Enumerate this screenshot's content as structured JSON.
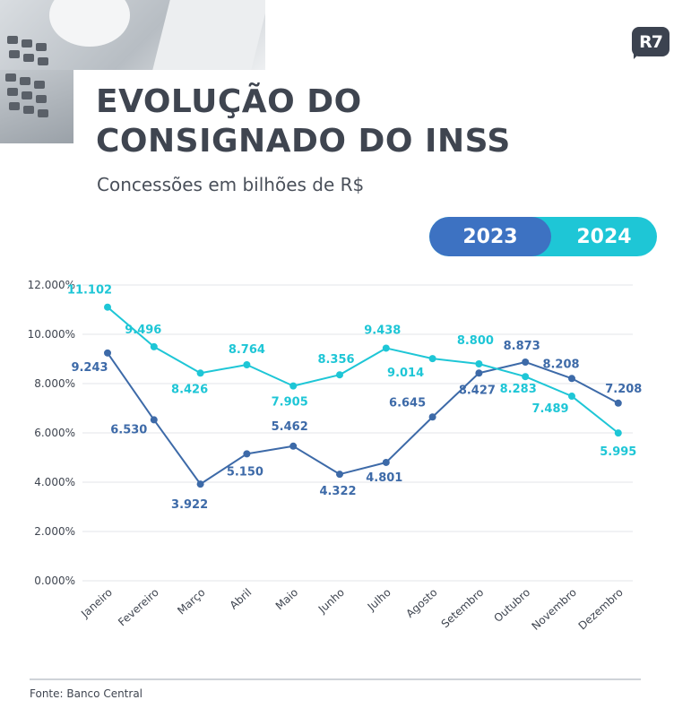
{
  "header": {
    "title_line1": "EVOLUÇÃO DO",
    "title_line2": "CONSIGNADO DO INSS",
    "subtitle": "Concessões em bilhões de R$",
    "logo_text": "R7"
  },
  "legend": {
    "label_2023": "2023",
    "label_2024": "2024"
  },
  "colors": {
    "series_2023": "#3d6aa8",
    "series_2024": "#1ec6d6",
    "legend_2023_bg": "#3d72c2",
    "text_dark": "#3f4550",
    "grid": "#e3e6ea"
  },
  "chart_data": {
    "type": "line",
    "title": "EVOLUÇÃO DO CONSIGNADO DO INSS",
    "subtitle": "Concessões em bilhões de R$",
    "xlabel": "",
    "ylabel": "",
    "categories": [
      "Janeiro",
      "Fevereiro",
      "Março",
      "Abril",
      "Maio",
      "Junho",
      "Julho",
      "Agosto",
      "Setembro",
      "Outubro",
      "Novembro",
      "Dezembro"
    ],
    "y_ticks": [
      0,
      2000,
      4000,
      6000,
      8000,
      10000,
      12000
    ],
    "y_tick_labels": [
      "0.000%",
      "2.000%",
      "4.000%",
      "6.000%",
      "8.000%",
      "10.000%",
      "12.000%"
    ],
    "ylim": [
      0,
      12000
    ],
    "grid": true,
    "legend_position": "top-right",
    "series": [
      {
        "name": "2023",
        "values": [
          9243,
          6530,
          3922,
          5150,
          5462,
          4322,
          4801,
          6645,
          8427,
          8873,
          8208,
          7208
        ],
        "labels": [
          "9.243",
          "6.530",
          "3.922",
          "5.150",
          "5.462",
          "4.322",
          "4.801",
          "6.645",
          "8.427",
          "8.873",
          "8.208",
          "7.208"
        ]
      },
      {
        "name": "2024",
        "values": [
          11102,
          9496,
          8426,
          8764,
          7905,
          8356,
          9438,
          9014,
          8800,
          8283,
          7489,
          5995
        ],
        "labels": [
          "11.102",
          "9.496",
          "8.426",
          "8.764",
          "7.905",
          "8.356",
          "9.438",
          "9.014",
          "8.800",
          "8.283",
          "7.489",
          "5.995"
        ]
      }
    ]
  },
  "footer": {
    "source": "Fonte: Banco Central"
  }
}
